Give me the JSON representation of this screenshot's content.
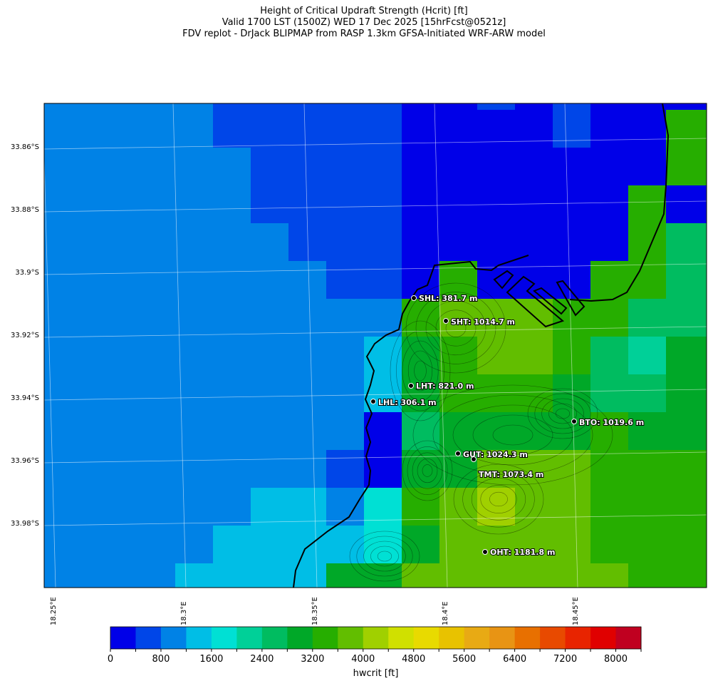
{
  "title": {
    "line1": "Height of Critical Updraft Strength (Hcrit) [ft]",
    "line2": "Valid 1700 LST (1500Z) WED 17 Dec 2025 [15hrFcst@0521z]",
    "line3": "FDV replot - DrJack BLIPMAP from RASP 1.3km GFSA-Initiated WRF-ARW model"
  },
  "axes": {
    "lat_labels": [
      "33.86°S",
      "33.88°S",
      "33.9°S",
      "33.92°S",
      "33.94°S",
      "33.96°S",
      "33.98°S"
    ],
    "lon_labels": [
      "18.25°E",
      "18.3°E",
      "18.35°E",
      "18.4°E",
      "18.45°E"
    ]
  },
  "stations": [
    {
      "code": "SHL",
      "label": "SHL: 381.7 m"
    },
    {
      "code": "SHT",
      "label": "SHT: 1014.7 m"
    },
    {
      "code": "LHT",
      "label": "LHT: 821.0 m"
    },
    {
      "code": "LHL",
      "label": "LHL: 306.1 m"
    },
    {
      "code": "BTO",
      "label": "BTO: 1019.6 m"
    },
    {
      "code": "GUT",
      "label": "GUT: 1024.3 m"
    },
    {
      "code": "TMT",
      "label": "TMT: 1073.4 m"
    },
    {
      "code": "OHT",
      "label": "OHT: 1181.8 m"
    }
  ],
  "colorbar": {
    "label": "hwcrit [ft]",
    "tick_labels": [
      "0",
      "800",
      "1600",
      "2400",
      "3200",
      "4000",
      "4800",
      "5600",
      "6400",
      "7200",
      "8000"
    ],
    "level_step_ft": 400,
    "colors": [
      "#0000e8",
      "#0046e8",
      "#0082e6",
      "#00bee6",
      "#00e0d4",
      "#00d098",
      "#00bc60",
      "#00a828",
      "#26ae00",
      "#62be00",
      "#a0d000",
      "#d0e000",
      "#e8da00",
      "#e8c200",
      "#e8aa14",
      "#e89414",
      "#e87000",
      "#e84a00",
      "#e82400",
      "#e00000",
      "#c00020"
    ]
  },
  "chart_data": {
    "type": "heatmap",
    "title": "Height of Critical Updraft Strength (Hcrit) [ft]",
    "variable": "hwcrit [ft]",
    "value_note": "grid cells as colour level index (level * 400 ft)",
    "grid_levels": [
      "222221111100101000",
      "222221111100001008",
      "222222111100000008",
      "222222111100000080",
      "222222211100000086",
      "222222221108000886",
      "222222222289998866",
      "222222222378998657",
      "222222222378887667",
      "222222222067777877",
      "222222221077999888",
      "222222332489a99888",
      "222223333479999888",
      "222233337799999988"
    ]
  }
}
